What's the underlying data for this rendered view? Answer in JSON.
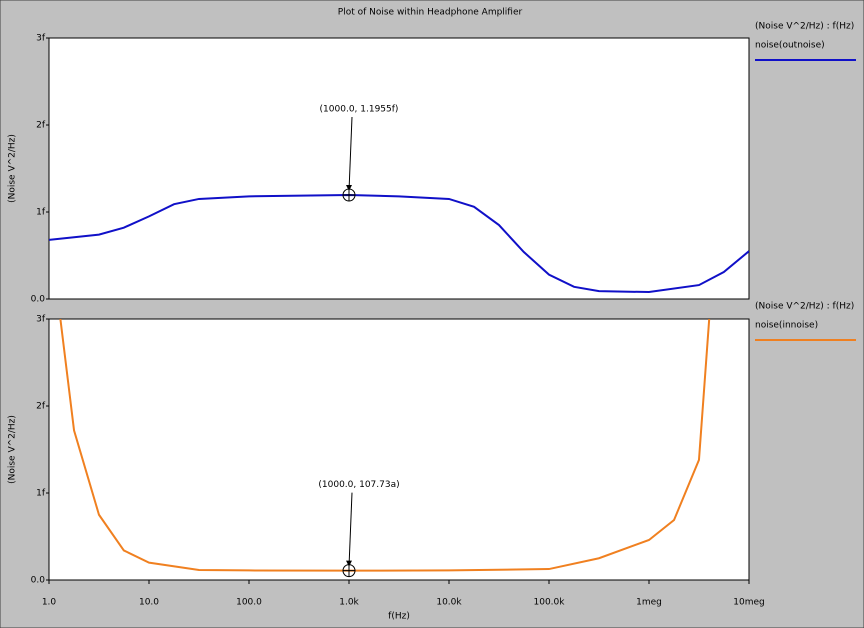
{
  "chart_data": [
    {
      "type": "line",
      "title": "Plot of Noise within Headphone Amplifier",
      "legend_title": "(Noise V^2/Hz) : f(Hz)",
      "ylabel": "(Noise V^2/Hz)",
      "x": [
        1,
        3.16,
        5.6,
        10,
        17.8,
        31.6,
        100,
        1000,
        3160,
        10000,
        17800,
        31600,
        56000,
        100000,
        178000,
        316000,
        1000000,
        3160000,
        5600000,
        10000000
      ],
      "series": [
        {
          "name": "noise(outnoise)",
          "color": "#1010c8",
          "values": [
            0.68,
            0.74,
            0.82,
            0.95,
            1.09,
            1.15,
            1.18,
            1.1955,
            1.18,
            1.15,
            1.06,
            0.85,
            0.54,
            0.28,
            0.14,
            0.09,
            0.08,
            0.16,
            0.31,
            0.55
          ]
        }
      ],
      "xlim": [
        1,
        10000000
      ],
      "log_x": true,
      "ylim": [
        0,
        3
      ],
      "yticks": [
        {
          "value": 0,
          "label": "0.0"
        },
        {
          "value": 1,
          "label": "1f"
        },
        {
          "value": 2,
          "label": "2f"
        },
        {
          "value": 3,
          "label": "3f"
        }
      ],
      "annotation": {
        "text": "(1000.0, 1.1955f)",
        "x": 1000,
        "y": 1.1955
      }
    },
    {
      "type": "line",
      "legend_title": "(Noise V^2/Hz) : f(Hz)",
      "ylabel": "(Noise V^2/Hz)",
      "xlabel": "f(Hz)",
      "x": [
        1.3,
        1.78,
        3.16,
        5.6,
        10,
        31.6,
        100,
        1000,
        10000,
        100000,
        316000,
        1000000,
        1780000,
        3160000,
        4000000
      ],
      "series": [
        {
          "name": "noise(innoise)",
          "color": "#f08020",
          "values": [
            3.0,
            1.72,
            0.75,
            0.34,
            0.2,
            0.115,
            0.11,
            0.10773,
            0.11,
            0.126,
            0.25,
            0.46,
            0.69,
            1.38,
            3.0
          ]
        }
      ],
      "xlim": [
        1,
        10000000
      ],
      "log_x": true,
      "ylim": [
        0,
        3
      ],
      "xticks": [
        {
          "value": 1,
          "label": "1.0"
        },
        {
          "value": 10,
          "label": "10.0"
        },
        {
          "value": 100,
          "label": "100.0"
        },
        {
          "value": 1000,
          "label": "1.0k"
        },
        {
          "value": 10000,
          "label": "10.0k"
        },
        {
          "value": 100000,
          "label": "100.0k"
        },
        {
          "value": 1000000,
          "label": "1meg"
        },
        {
          "value": 10000000,
          "label": "10meg"
        }
      ],
      "yticks": [
        {
          "value": 0,
          "label": "0.0"
        },
        {
          "value": 1,
          "label": "1f"
        },
        {
          "value": 2,
          "label": "2f"
        },
        {
          "value": 3,
          "label": "3f"
        }
      ],
      "annotation": {
        "text": "(1000.0, 107.73a)",
        "x": 1000,
        "y": 0.10773
      }
    }
  ]
}
